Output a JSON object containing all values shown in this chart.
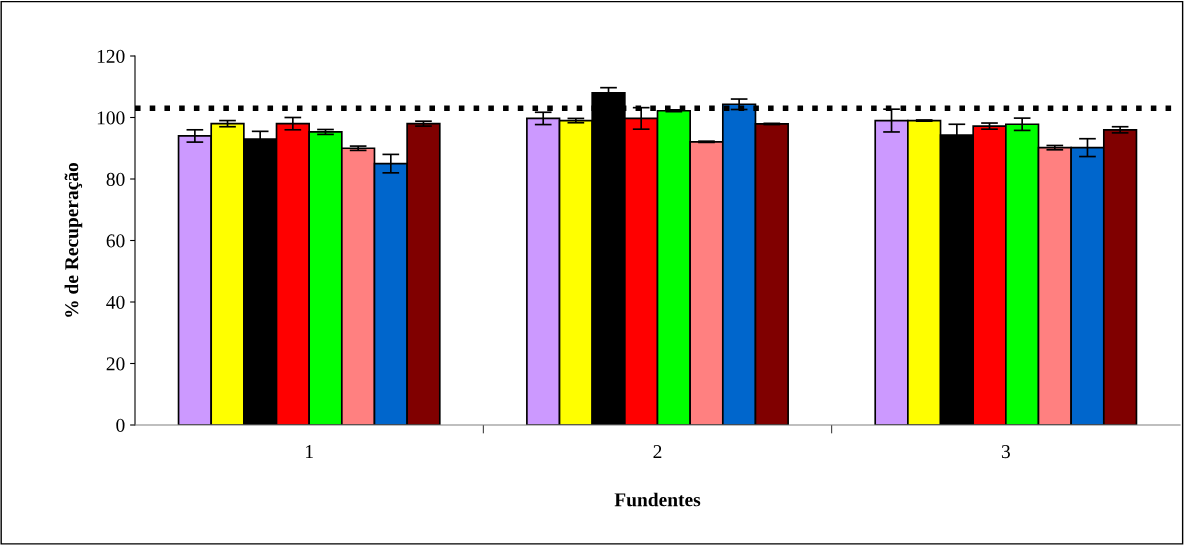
{
  "chart_data": {
    "type": "bar",
    "xlabel": "Fundentes",
    "ylabel": "% de Recuperação",
    "categories": [
      "1",
      "2",
      "3"
    ],
    "series": [
      {
        "color": "#cc99ff",
        "values": [
          94,
          99.7,
          99
        ],
        "errors": [
          2,
          2,
          3.7
        ]
      },
      {
        "color": "#ffff00",
        "values": [
          98,
          99,
          99
        ],
        "errors": [
          1,
          0.7,
          0.2
        ]
      },
      {
        "color": "#000000",
        "values": [
          93,
          108,
          94.3
        ],
        "errors": [
          2.5,
          1.7,
          3.5
        ]
      },
      {
        "color": "#ff0000",
        "values": [
          98,
          99.7,
          97.2
        ],
        "errors": [
          2,
          3.5,
          1
        ]
      },
      {
        "color": "#00ff00",
        "values": [
          95.3,
          102.2,
          97.8
        ],
        "errors": [
          0.8,
          0.3,
          2
        ]
      },
      {
        "color": "#ff8080",
        "values": [
          90,
          92.1,
          90.2
        ],
        "errors": [
          0.7,
          0.2,
          0.7
        ]
      },
      {
        "color": "#0066cc",
        "values": [
          85,
          104.3,
          90.2
        ],
        "errors": [
          3,
          1.7,
          2.9
        ]
      },
      {
        "color": "#800000",
        "values": [
          98,
          97.9,
          96
        ],
        "errors": [
          0.8,
          0.2,
          1
        ]
      }
    ],
    "ylim": [
      0,
      120
    ],
    "yticks": [
      0,
      20,
      40,
      60,
      80,
      100,
      120
    ],
    "ref_lines": [
      {
        "axis": "y",
        "value": 103,
        "color": "#000000",
        "line_style": "dotted"
      }
    ],
    "grid": false,
    "legend": false
  }
}
